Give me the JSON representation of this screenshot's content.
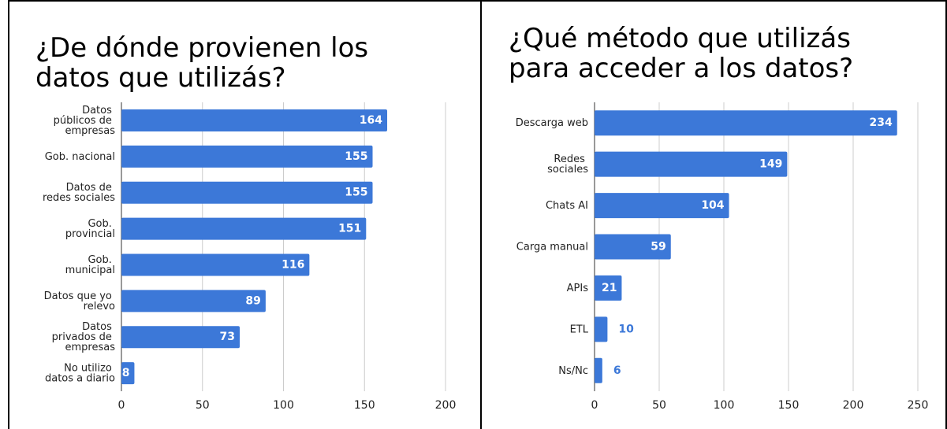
{
  "chart_data": [
    {
      "type": "bar",
      "orientation": "horizontal",
      "title": "¿De dónde provienen los datos que utilizás?",
      "categories": [
        "Datos públicos de empresas",
        "Gob. nacional",
        "Datos de redes sociales",
        "Gob. provincial",
        "Gob. municipal",
        "Datos que yo relevo",
        "Datos privados de empresas",
        "No utilizo datos a diario"
      ],
      "values": [
        164,
        155,
        155,
        151,
        116,
        89,
        73,
        8
      ],
      "color": "#3c78d8",
      "xlim": [
        0,
        200
      ],
      "xticks": [
        0,
        50,
        100,
        150,
        200
      ],
      "grid": true
    },
    {
      "type": "bar",
      "orientation": "horizontal",
      "title": "¿Qué método que utilizás para acceder a los datos?",
      "categories": [
        "Descarga web",
        "Redes sociales",
        "Chats AI",
        "Carga manual",
        "APIs",
        "ETL",
        "Ns/Nc"
      ],
      "values": [
        234,
        149,
        104,
        59,
        21,
        10,
        6
      ],
      "color": "#3c78d8",
      "xlim": [
        0,
        250
      ],
      "xticks": [
        0,
        50,
        100,
        150,
        200,
        250
      ],
      "grid": true
    }
  ]
}
